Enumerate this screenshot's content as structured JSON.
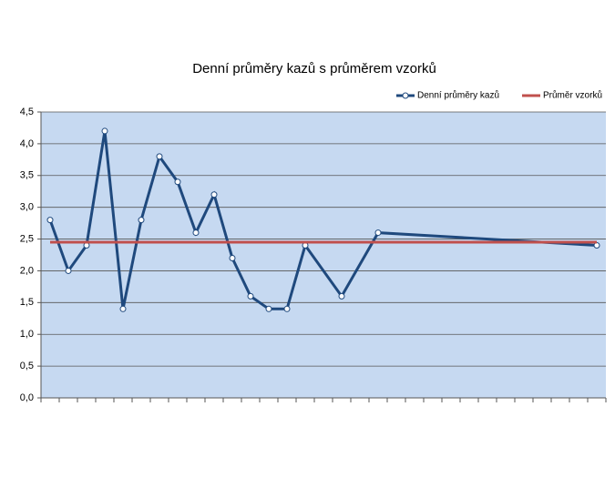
{
  "chart_data": {
    "type": "line",
    "title": "Denní průměry kazů s průměrem vzorků",
    "series": [
      {
        "name": "Denní průměry kazů",
        "color": "#1f497d",
        "markers": true,
        "x": [
          1,
          2,
          3,
          4,
          5,
          6,
          7,
          8,
          9,
          10,
          11,
          12,
          13,
          14,
          15,
          17,
          19,
          31
        ],
        "values": [
          2.8,
          2.0,
          2.4,
          4.2,
          1.4,
          2.8,
          3.8,
          3.4,
          2.6,
          3.2,
          2.2,
          1.6,
          1.4,
          1.4,
          2.4,
          1.6,
          2.6,
          2.4
        ]
      },
      {
        "name": "Průměr vzorků",
        "color": "#c0504d",
        "markers": false,
        "x": [
          1,
          31
        ],
        "values": [
          2.45,
          2.45
        ]
      }
    ],
    "xlim": [
      0.5,
      31.5
    ],
    "ylim": [
      0,
      4.5
    ],
    "yticks": [
      {
        "value": 0,
        "label": "0,0"
      },
      {
        "value": 0.5,
        "label": "0,5"
      },
      {
        "value": 1,
        "label": "1,0"
      },
      {
        "value": 1.5,
        "label": "1,5"
      },
      {
        "value": 2,
        "label": "2,0"
      },
      {
        "value": 2.5,
        "label": "2,5"
      },
      {
        "value": 3,
        "label": "3,0"
      },
      {
        "value": 3.5,
        "label": "3,5"
      },
      {
        "value": 4,
        "label": "4,0"
      },
      {
        "value": 4.5,
        "label": "4,5"
      }
    ],
    "grid": true,
    "legend": "top-right",
    "background": "#c6d9f1"
  }
}
